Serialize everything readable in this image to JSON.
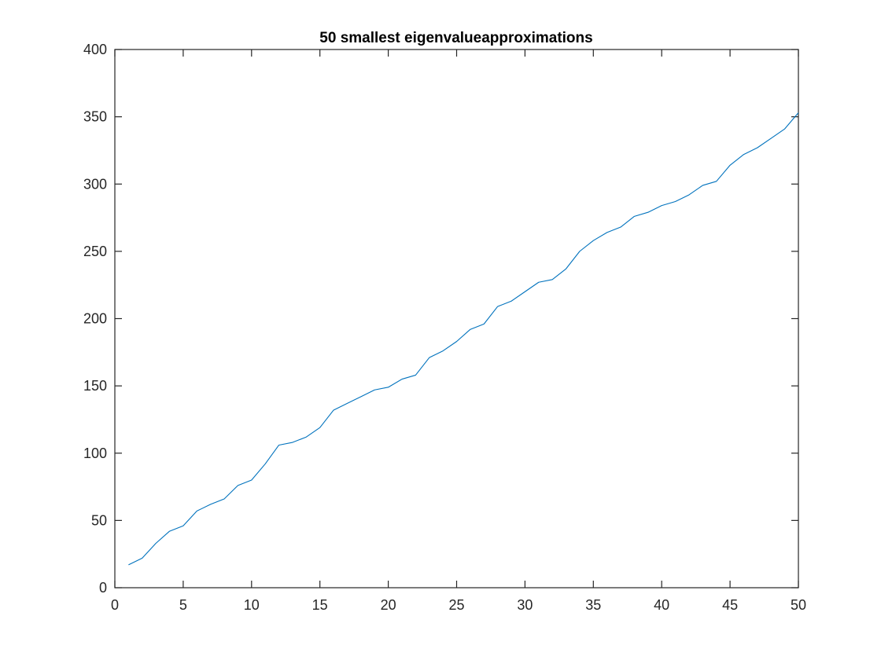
{
  "chart_data": {
    "type": "line",
    "title": "50 smallest eigenvalueapproximations",
    "xlabel": "",
    "ylabel": "",
    "xlim": [
      0,
      50
    ],
    "ylim": [
      0,
      400
    ],
    "x_ticks": [
      0,
      5,
      10,
      15,
      20,
      25,
      30,
      35,
      40,
      45,
      50
    ],
    "y_ticks": [
      0,
      50,
      100,
      150,
      200,
      250,
      300,
      350,
      400
    ],
    "grid": false,
    "legend": "none",
    "box": true,
    "line_color": "#0072BD",
    "axis_color": "#262626",
    "series": [
      {
        "x": [
          1,
          2,
          3,
          4,
          5,
          6,
          7,
          8,
          9,
          10,
          11,
          12,
          13,
          14,
          15,
          16,
          17,
          18,
          19,
          20,
          21,
          22,
          23,
          24,
          25,
          26,
          27,
          28,
          29,
          30,
          31,
          32,
          33,
          34,
          35,
          36,
          37,
          38,
          39,
          40,
          41,
          42,
          43,
          44,
          45,
          46,
          47,
          48,
          49,
          50
        ],
        "values": [
          17,
          22,
          33,
          42,
          46,
          57,
          62,
          66,
          76,
          80,
          92,
          106,
          108,
          112,
          119,
          132,
          137,
          142,
          147,
          149,
          155,
          158,
          171,
          176,
          183,
          192,
          196,
          209,
          213,
          220,
          227,
          229,
          237,
          250,
          258,
          264,
          268,
          276,
          279,
          284,
          287,
          292,
          299,
          302,
          314,
          322,
          327,
          334,
          341,
          353
        ]
      }
    ]
  }
}
